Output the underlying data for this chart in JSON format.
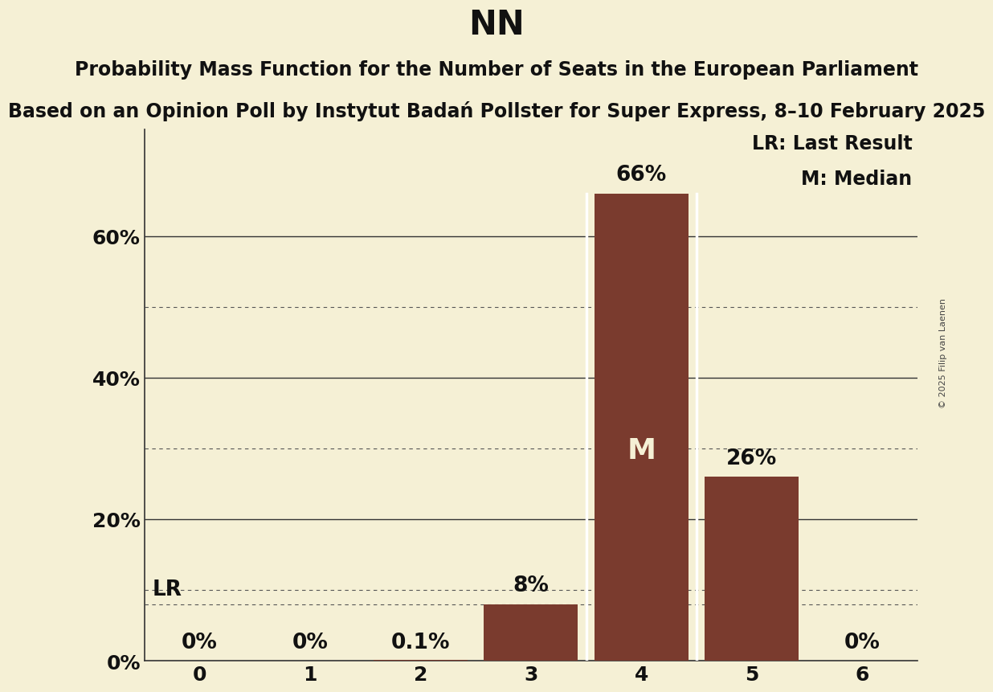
{
  "title": "NN",
  "subtitle1": "Probability Mass Function for the Number of Seats in the European Parliament",
  "subtitle2": "Based on an Opinion Poll by Instytut Badań Pollster for Super Express, 8–10 February 2025",
  "copyright": "© 2025 Filip van Laenen",
  "categories": [
    0,
    1,
    2,
    3,
    4,
    5,
    6
  ],
  "values": [
    0.0,
    0.0,
    0.001,
    0.08,
    0.66,
    0.26,
    0.0
  ],
  "labels": [
    "0%",
    "0%",
    "0.1%",
    "8%",
    "66%",
    "26%",
    "0%"
  ],
  "bar_color": "#7a3b2e",
  "background_color": "#f5f0d5",
  "median_bar": 4,
  "lr_value": 0.08,
  "legend_lr": "LR: Last Result",
  "legend_m": "M: Median",
  "ylim": [
    0,
    0.75
  ],
  "major_yticks": [
    0.0,
    0.2,
    0.4,
    0.6
  ],
  "major_ytick_labels": [
    "0%",
    "20%",
    "40%",
    "60%"
  ],
  "minor_yticks": [
    0.1,
    0.3,
    0.5
  ],
  "title_fontsize": 30,
  "subtitle1_fontsize": 17,
  "subtitle2_fontsize": 17,
  "bar_label_fontsize": 19,
  "axis_fontsize": 18,
  "legend_fontsize": 17,
  "white_line_color": "#ffffff"
}
